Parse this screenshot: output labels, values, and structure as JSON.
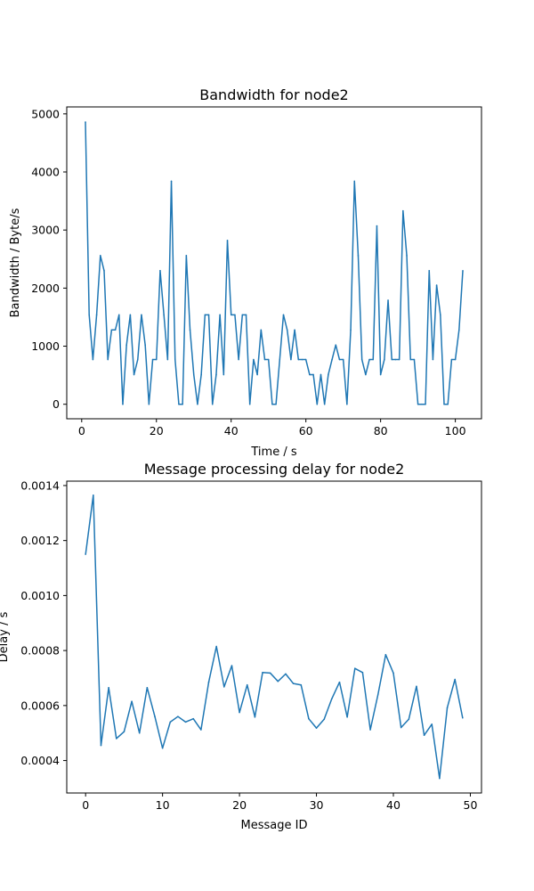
{
  "chart_data": [
    {
      "type": "line",
      "title": "Bandwidth for node2",
      "xlabel": "Time / s",
      "ylabel": "Bandwidth / Byte/s",
      "xlim": [
        -4,
        107
      ],
      "ylim": [
        -250,
        5120
      ],
      "xticks": [
        0,
        20,
        40,
        60,
        80,
        100
      ],
      "yticks": [
        0,
        1000,
        2000,
        3000,
        4000,
        5000
      ],
      "grid": false,
      "color": "#1f77b4",
      "series": [
        {
          "x": [
            1,
            2,
            3,
            4,
            5,
            6,
            7,
            8,
            9,
            10,
            11,
            12,
            13,
            14,
            15,
            16,
            17,
            18,
            19,
            20,
            21,
            22,
            23,
            24,
            25,
            26,
            27,
            28,
            29,
            30,
            31,
            32,
            33,
            34,
            35,
            36,
            37,
            38,
            39,
            40,
            41,
            42,
            43,
            44,
            45,
            46,
            47,
            48,
            49,
            50,
            51,
            52,
            53,
            54,
            55,
            56,
            57,
            58,
            59,
            60,
            61,
            62,
            63,
            64,
            65,
            66,
            67,
            68,
            69,
            70,
            71,
            72,
            73,
            74,
            75,
            76,
            77,
            78,
            79,
            80,
            81,
            82,
            83,
            84,
            85,
            86,
            87,
            88,
            89,
            90,
            91,
            92,
            93,
            94,
            95,
            96,
            97,
            98,
            99,
            100,
            101,
            102
          ],
          "values": [
            4860,
            1540,
            770,
            1540,
            2560,
            2300,
            770,
            1280,
            1280,
            1540,
            0,
            1020,
            1540,
            510,
            770,
            1540,
            1020,
            0,
            770,
            770,
            2300,
            1540,
            770,
            3840,
            770,
            0,
            0,
            2560,
            1280,
            510,
            0,
            510,
            1540,
            1540,
            0,
            510,
            1540,
            510,
            2820,
            1540,
            1540,
            770,
            1540,
            1540,
            0,
            770,
            510,
            1280,
            770,
            770,
            0,
            0,
            770,
            1540,
            1280,
            770,
            1280,
            770,
            770,
            770,
            510,
            510,
            0,
            510,
            0,
            510,
            770,
            1020,
            770,
            770,
            0,
            1280,
            3840,
            2560,
            770,
            510,
            770,
            770,
            3070,
            510,
            770,
            1790,
            770,
            770,
            770,
            3330,
            2560,
            770,
            770,
            0,
            0,
            0,
            2300,
            770,
            2050,
            1540,
            0,
            0,
            770,
            770,
            1280,
            2300
          ]
        }
      ]
    },
    {
      "type": "line",
      "title": "Message processing delay for node2",
      "xlabel": "Message ID",
      "ylabel": "Delay / s",
      "xlim": [
        -2.45,
        51.45
      ],
      "ylim": [
        0.000282,
        0.001416
      ],
      "xticks": [
        0,
        10,
        20,
        30,
        40,
        50
      ],
      "yticks": [
        "0.0004",
        "0.0006",
        "0.0008",
        "0.0010",
        "0.0012",
        "0.0014"
      ],
      "grid": false,
      "color": "#1f77b4",
      "series": [
        {
          "x": [
            0,
            1,
            2,
            3,
            4,
            5,
            6,
            7,
            8,
            9,
            10,
            11,
            12,
            13,
            14,
            15,
            16,
            17,
            18,
            19,
            20,
            21,
            22,
            23,
            24,
            25,
            26,
            27,
            28,
            29,
            30,
            31,
            32,
            33,
            34,
            35,
            36,
            37,
            38,
            39,
            40,
            41,
            42,
            43,
            44,
            45,
            46,
            47,
            48,
            49
          ],
          "values": [
            0.00115,
            0.001365,
            0.000455,
            0.000665,
            0.00048,
            0.000505,
            0.000615,
            0.0005,
            0.000665,
            0.00056,
            0.000445,
            0.00054,
            0.00056,
            0.00054,
            0.000552,
            0.000512,
            0.000685,
            0.000815,
            0.000668,
            0.000745,
            0.000575,
            0.000675,
            0.000558,
            0.00072,
            0.000718,
            0.000688,
            0.000715,
            0.00068,
            0.000675,
            0.000552,
            0.000518,
            0.00055,
            0.000625,
            0.000685,
            0.000558,
            0.000735,
            0.00072,
            0.000512,
            0.00064,
            0.000785,
            0.000718,
            0.00052,
            0.00055,
            0.00067,
            0.000492,
            0.000532,
            0.000335,
            0.000592,
            0.000695,
            0.000555
          ]
        }
      ]
    }
  ]
}
